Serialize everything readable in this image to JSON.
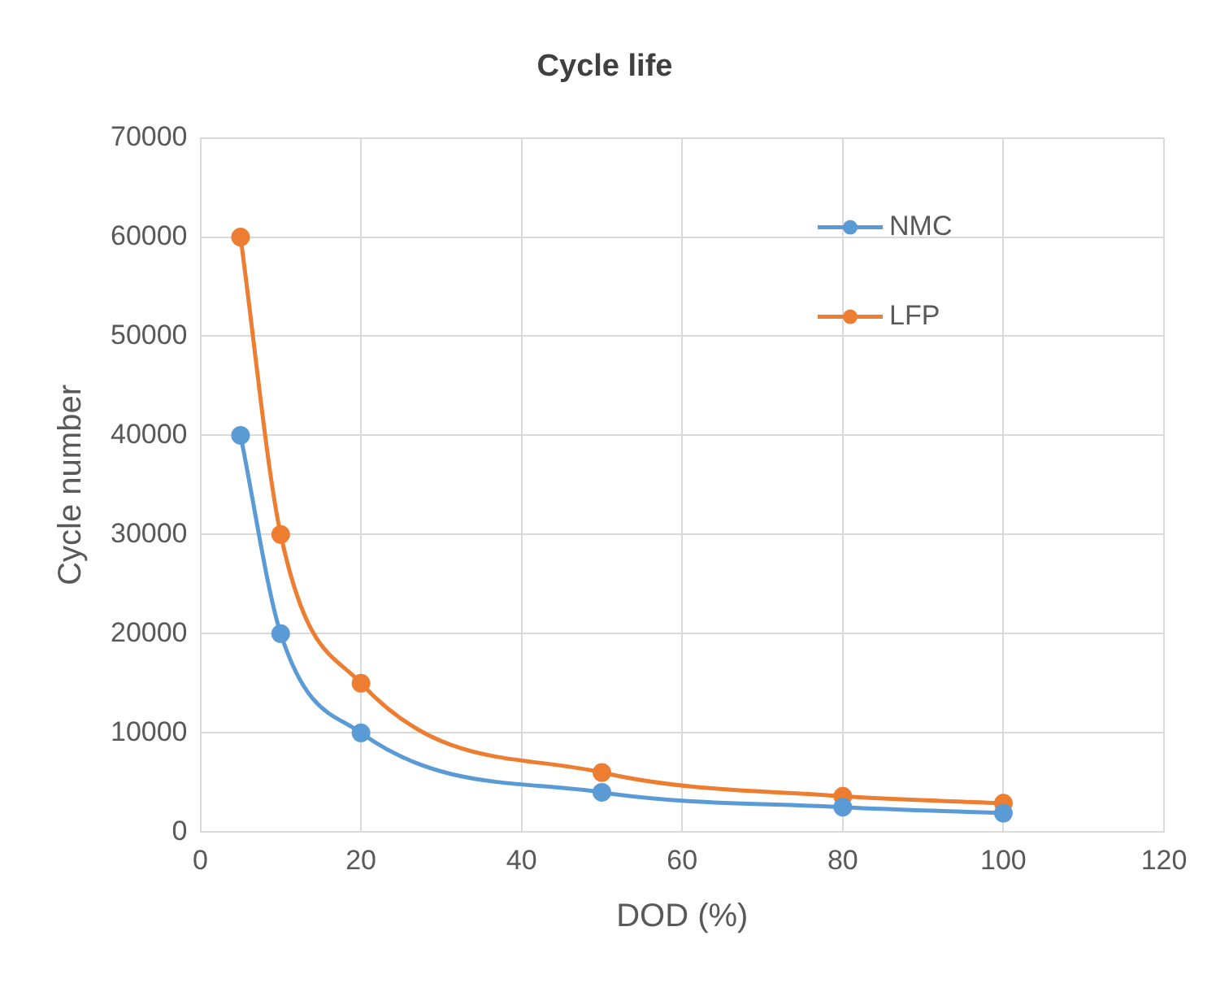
{
  "chart_data": {
    "type": "line",
    "title": "Cycle life",
    "xlabel": "DOD (%)",
    "ylabel": "Cycle number",
    "xlim": [
      0,
      120
    ],
    "xticks": [
      0,
      20,
      40,
      60,
      80,
      100,
      120
    ],
    "ylim": [
      0,
      70000
    ],
    "yticks": [
      0,
      10000,
      20000,
      30000,
      40000,
      50000,
      60000,
      70000
    ],
    "grid": true,
    "legend": "top right",
    "marker": "circle",
    "line_style": "solid",
    "series": [
      {
        "name": "NMC",
        "color": "#5b9bd5",
        "x": [
          5,
          10,
          20,
          50,
          80,
          100
        ],
        "values": [
          40000,
          20000,
          10000,
          4000,
          2500,
          1900
        ]
      },
      {
        "name": "LFP",
        "color": "#ed7d31",
        "x": [
          5,
          10,
          20,
          50,
          80,
          100
        ],
        "values": [
          60000,
          30000,
          15000,
          6000,
          3600,
          2900
        ]
      }
    ]
  }
}
